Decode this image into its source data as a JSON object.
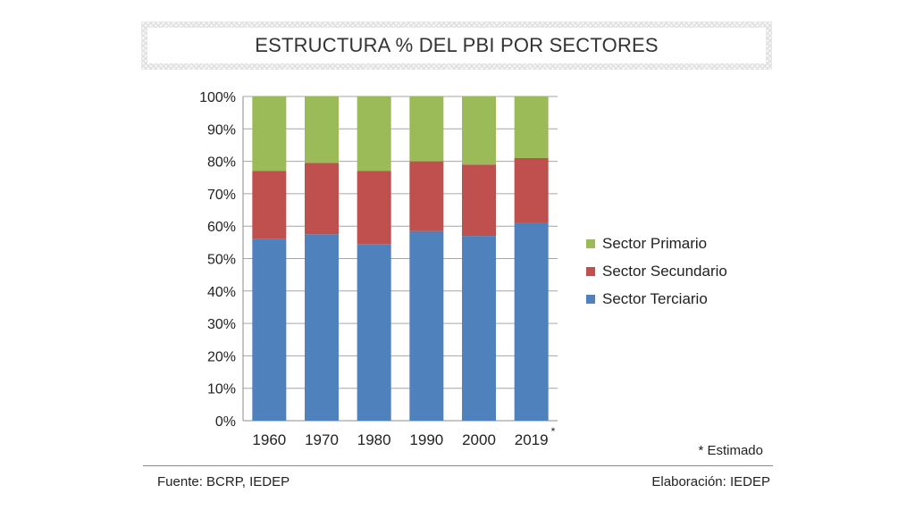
{
  "title": "ESTRUCTURA % DEL PBI POR SECTORES",
  "colors": {
    "primario": "#9bbb59",
    "secundario": "#c0504d",
    "terciario": "#4f81bd"
  },
  "chart_data": {
    "type": "bar",
    "stacked": true,
    "title": "ESTRUCTURA % DEL PBI POR SECTORES",
    "categories": [
      "1960",
      "1970",
      "1980",
      "1990",
      "2000",
      "2019"
    ],
    "category_marks": [
      "",
      "",
      "",
      "",
      "",
      "*"
    ],
    "series": [
      {
        "name": "Sector Terciario",
        "values": [
          56,
          57.5,
          54.5,
          58.5,
          57,
          61
        ]
      },
      {
        "name": "Sector Secundario",
        "values": [
          21,
          22,
          22.5,
          21.5,
          22,
          20
        ]
      },
      {
        "name": "Sector Primario",
        "values": [
          23,
          20.5,
          23,
          20,
          21,
          19
        ]
      }
    ],
    "ylim": [
      0,
      100
    ],
    "yticks": [
      "0%",
      "10%",
      "20%",
      "30%",
      "40%",
      "50%",
      "60%",
      "70%",
      "80%",
      "90%",
      "100%"
    ],
    "xlabel": "",
    "ylabel": "",
    "grid": true,
    "legend": [
      "Sector Primario",
      "Sector Secundario",
      "Sector Terciario"
    ],
    "legend_position": "right"
  },
  "note": "* Estimado",
  "footer": {
    "source": "Fuente: BCRP, IEDEP",
    "credit": "Elaboración: IEDEP"
  }
}
